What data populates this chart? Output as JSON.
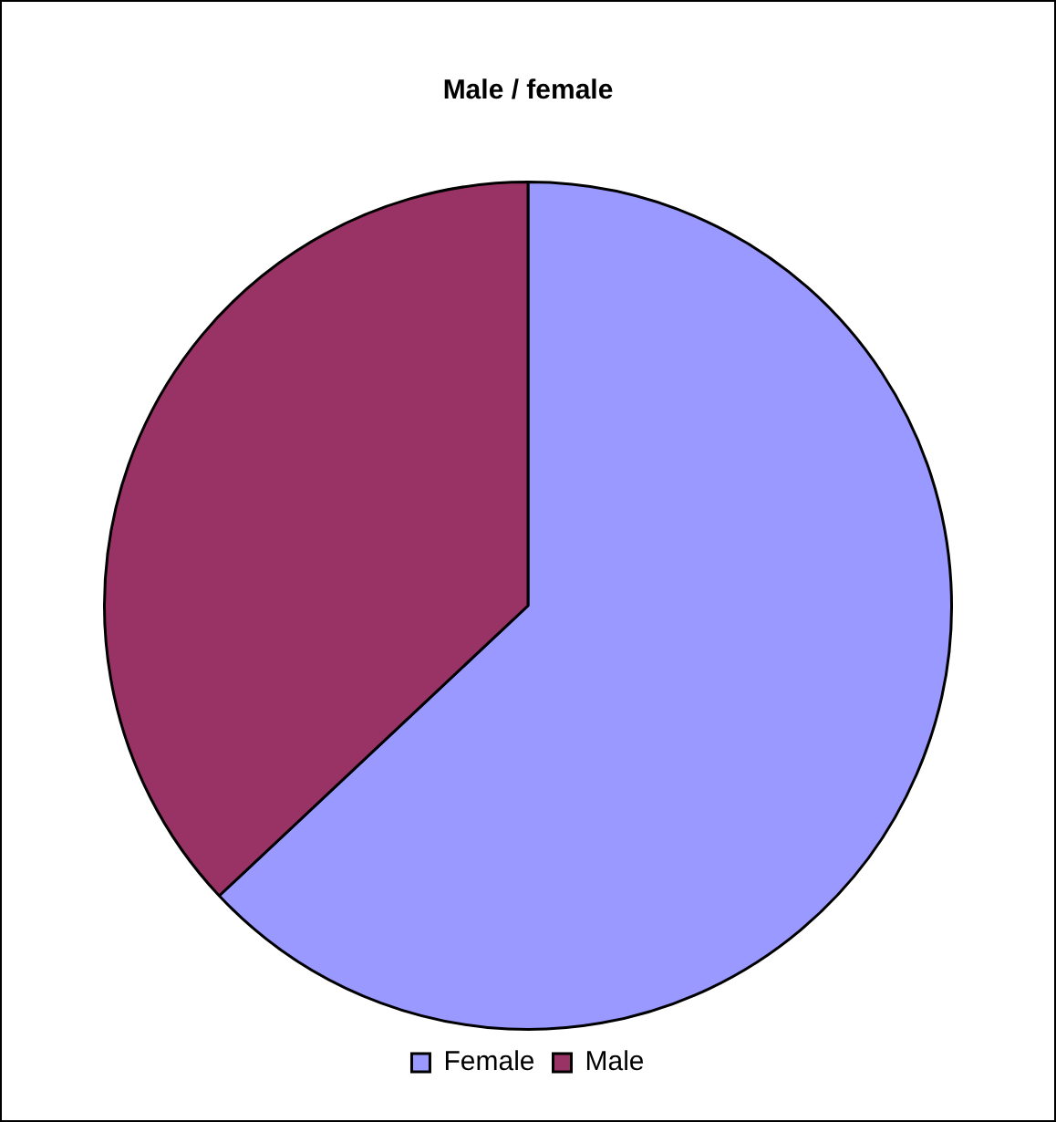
{
  "chart_data": {
    "type": "pie",
    "title": "Male / female",
    "categories": [
      "Female",
      "Male"
    ],
    "values": [
      63,
      37
    ],
    "colors": [
      "#9999ff",
      "#993366"
    ],
    "legend": "bottom"
  }
}
